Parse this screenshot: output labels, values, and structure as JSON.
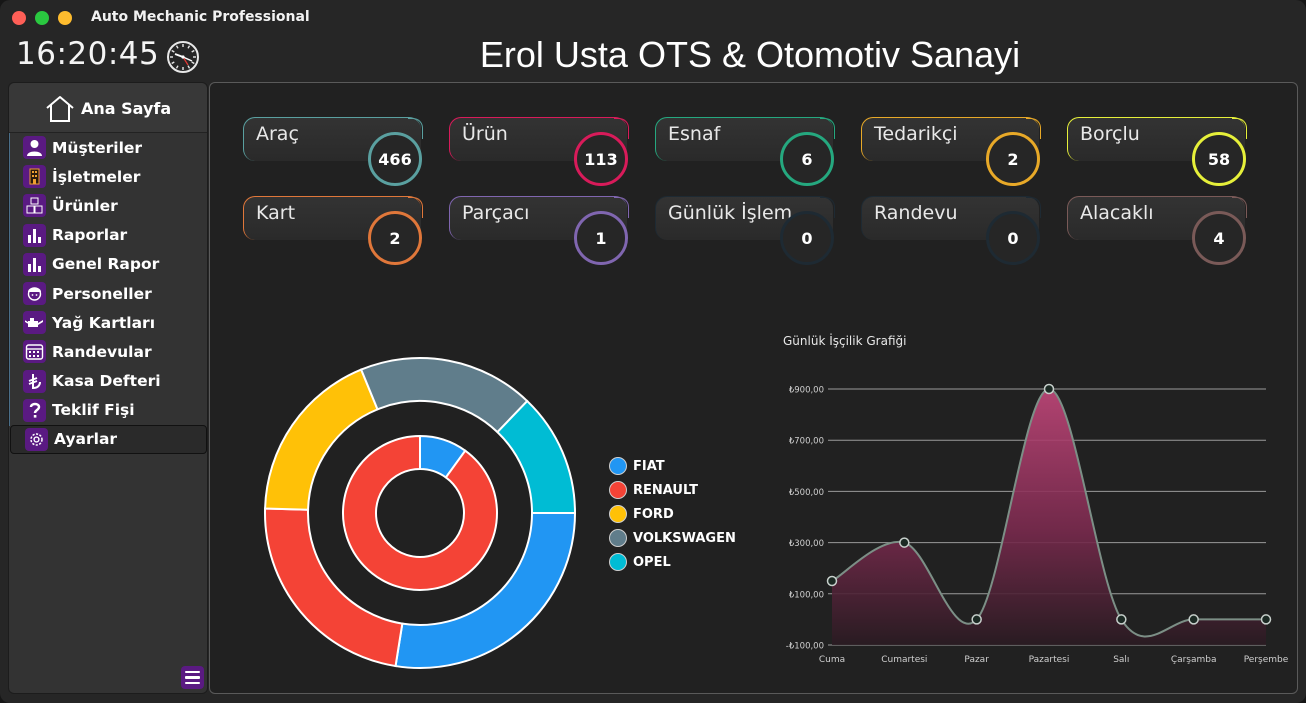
{
  "window": {
    "title": "Auto Mechanic Professional"
  },
  "clock": {
    "time": "16:20:45"
  },
  "page_title": "Erol Usta OTS & Otomotiv Sanayi",
  "sidebar": {
    "home": "Ana Sayfa",
    "items": [
      {
        "label": "Müşteriler",
        "icon": "user-icon"
      },
      {
        "label": "İşletmeler",
        "icon": "building-icon"
      },
      {
        "label": "Ürünler",
        "icon": "boxes-icon"
      },
      {
        "label": "Raporlar",
        "icon": "bar-chart-icon"
      },
      {
        "label": "Genel Rapor",
        "icon": "bar-chart-icon"
      },
      {
        "label": "Personeller",
        "icon": "worker-icon"
      },
      {
        "label": "Yağ Kartları",
        "icon": "oil-can-icon"
      },
      {
        "label": "Randevular",
        "icon": "calendar-icon"
      },
      {
        "label": "Kasa Defteri",
        "icon": "lira-icon"
      },
      {
        "label": "Teklif Fişi",
        "icon": "question-icon"
      },
      {
        "label": "Ayarlar",
        "icon": "gear-icon"
      }
    ]
  },
  "cards": [
    {
      "label": "Araç",
      "value": "466",
      "color": "#5aa0a0"
    },
    {
      "label": "Ürün",
      "value": "113",
      "color": "#d81b5a"
    },
    {
      "label": "Esnaf",
      "value": "6",
      "color": "#25a87f"
    },
    {
      "label": "Tedarikçi",
      "value": "2",
      "color": "#e8a928"
    },
    {
      "label": "Borçlu",
      "value": "58",
      "color": "#e6f03a"
    },
    {
      "label": "Kart",
      "value": "2",
      "color": "#e0773a"
    },
    {
      "label": "Parçacı",
      "value": "1",
      "color": "#8066b0"
    },
    {
      "label": "Günlük İşlem",
      "value": "0",
      "color": "#1e2a33"
    },
    {
      "label": "Randevu",
      "value": "0",
      "color": "#1e2a33"
    },
    {
      "label": "Alacaklı",
      "value": "4",
      "color": "#7a5a58"
    }
  ],
  "chart_data": [
    {
      "type": "pie",
      "categories": [
        "FIAT",
        "RENAULT",
        "FORD",
        "VOLKSWAGEN",
        "OPEL"
      ],
      "colors": [
        "#2196f3",
        "#f44336",
        "#ffc107",
        "#607d8b",
        "#00bcd4"
      ],
      "series": [
        {
          "values": [
            100,
            900,
            0,
            0,
            0
          ]
        },
        {
          "values": [
            30,
            25,
            20,
            20,
            14
          ]
        }
      ],
      "legend": "right"
    },
    {
      "type": "area",
      "title": "Günlük İşçilik Grafiği",
      "categories": [
        "Cuma",
        "Cumartesi",
        "Pazar",
        "Pazartesi",
        "Salı",
        "Çarşamba",
        "Perşembe"
      ],
      "values": [
        150,
        300,
        0,
        900,
        0,
        0,
        0
      ],
      "y_ticks": [
        "₺900,00",
        "₺700,00",
        "₺500,00",
        "₺300,00",
        "₺100,00",
        "-₺100,00"
      ],
      "ylim": [
        -100,
        900
      ],
      "grid": true
    }
  ]
}
